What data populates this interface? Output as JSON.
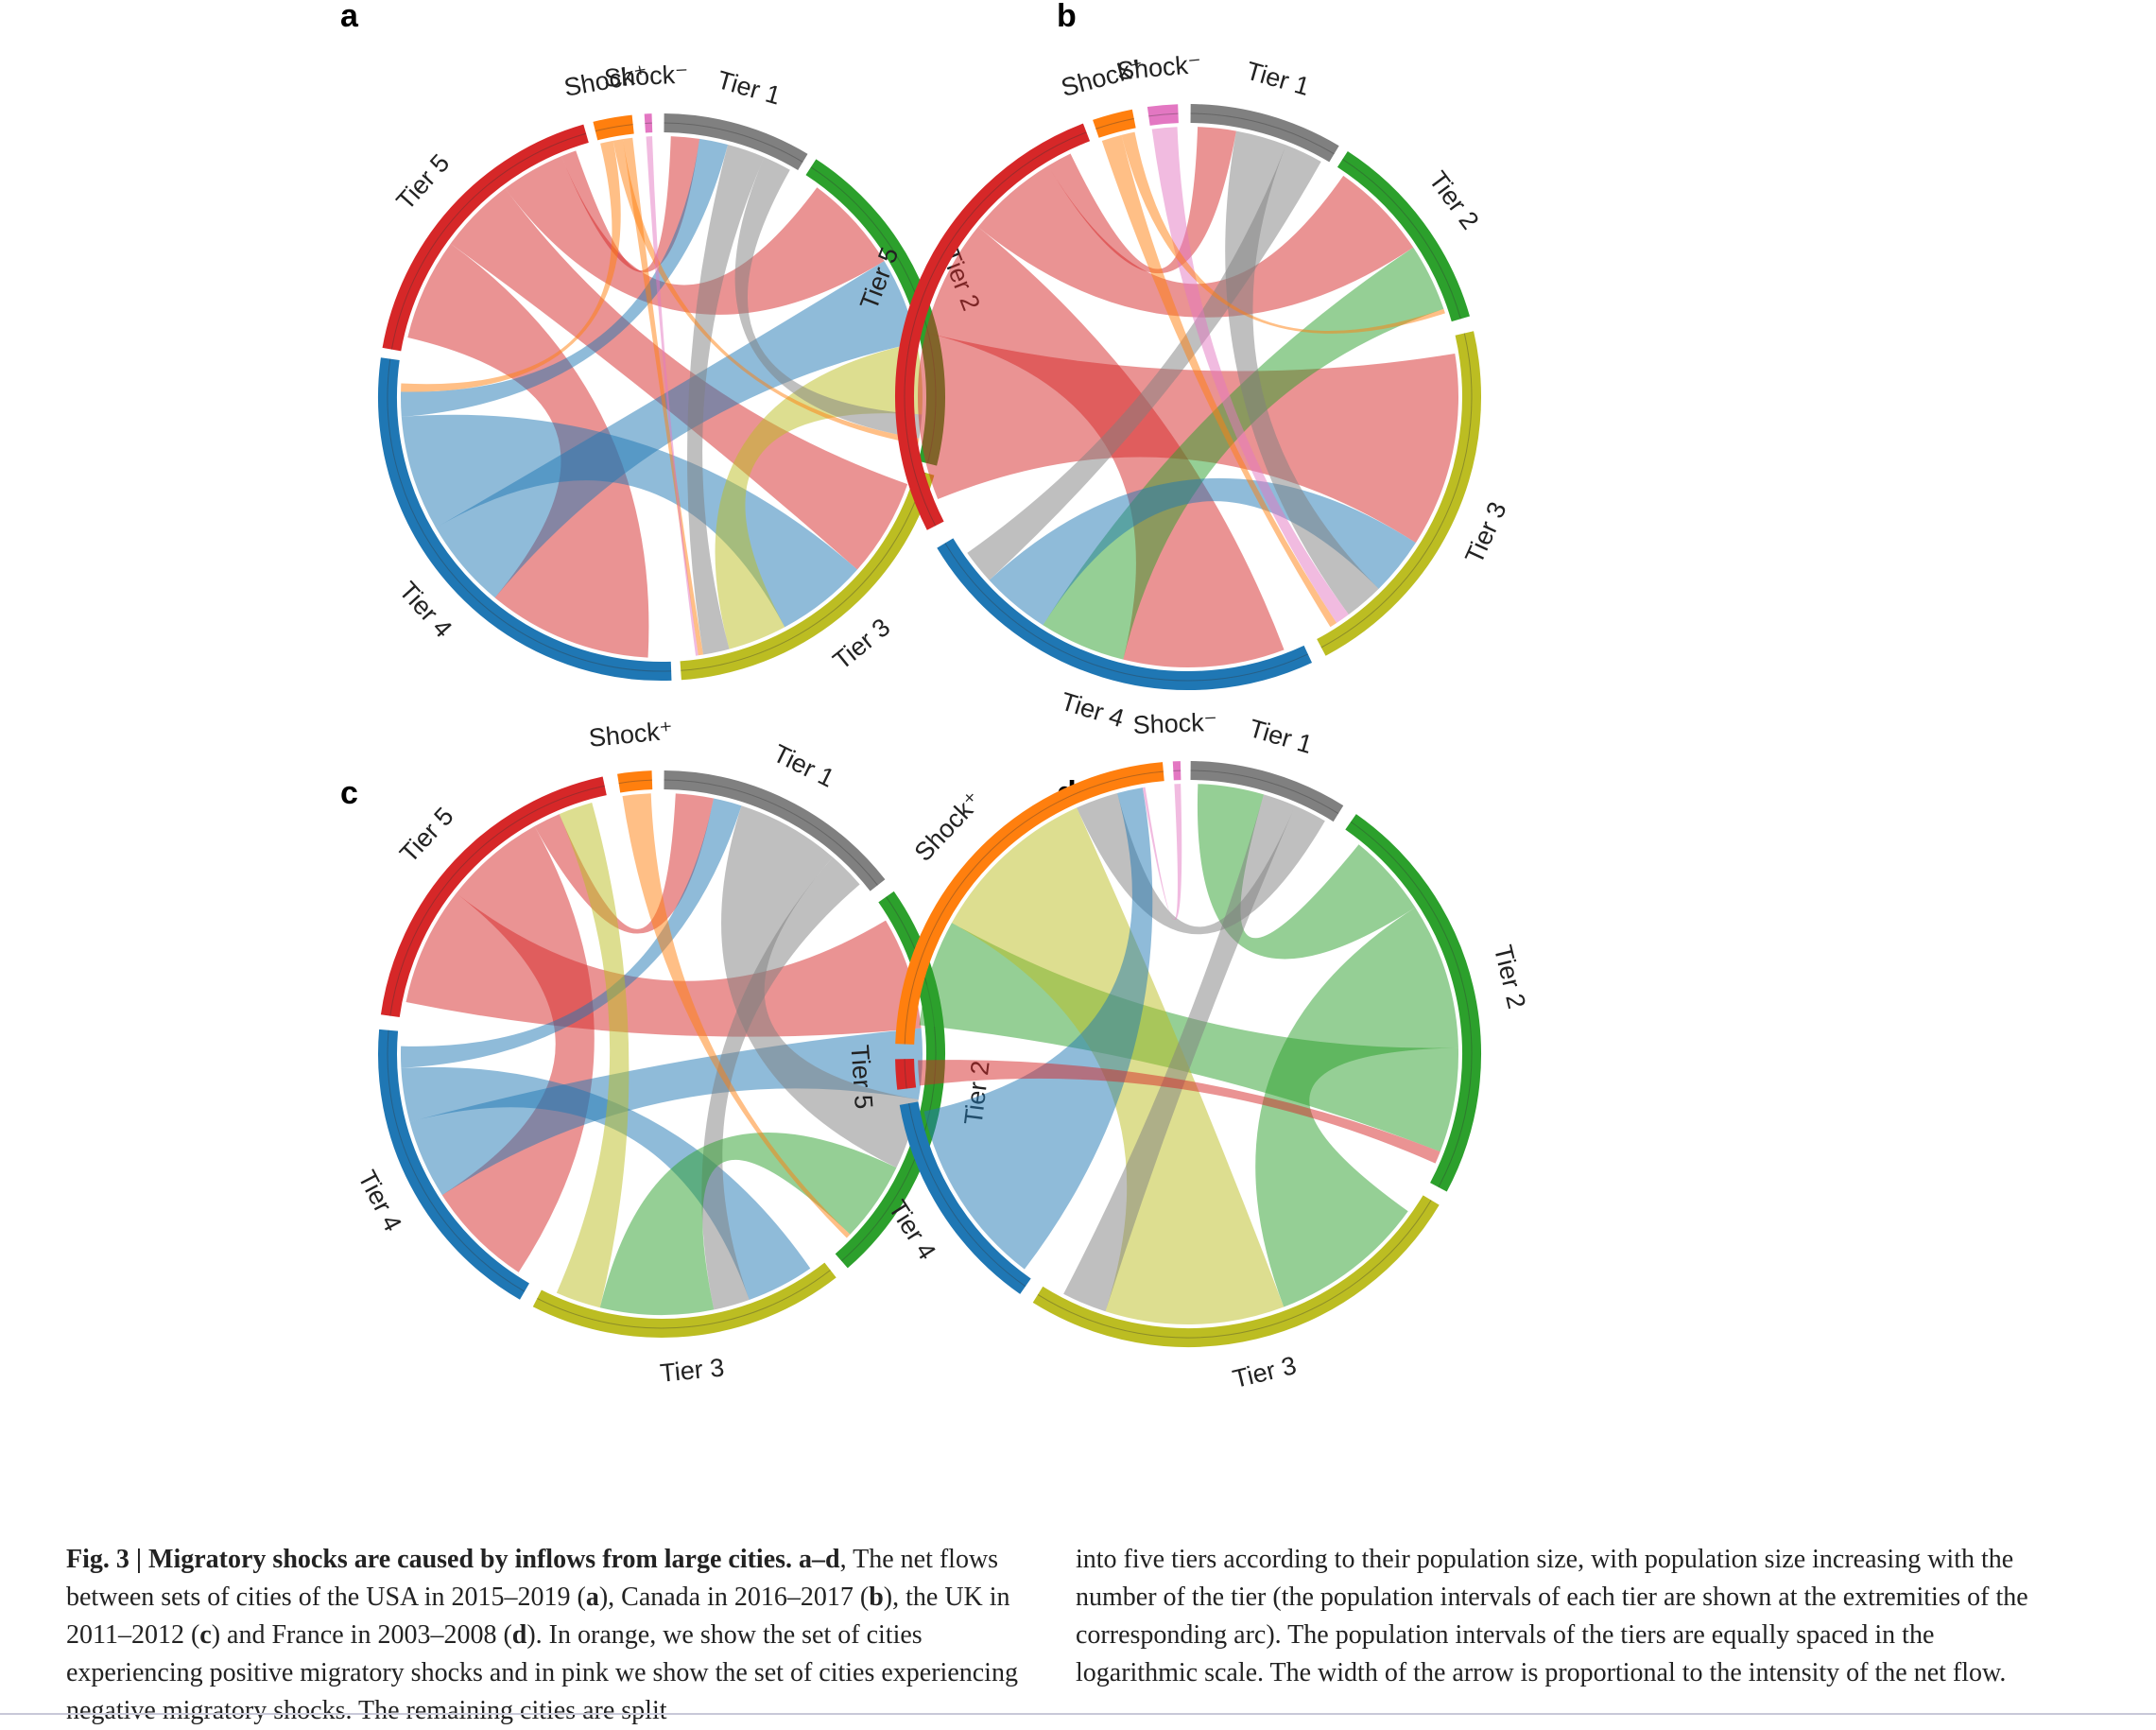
{
  "colors": {
    "Tier 1": "#808080",
    "Tier 2": "#2ca02c",
    "Tier 3": "#bcbd22",
    "Tier 4": "#1f77b4",
    "Tier 5": "#d62728",
    "Shock+": "#ff7f0e",
    "Shock-": "#e377c2"
  },
  "panels": [
    {
      "letter": "a",
      "segments": [
        {
          "label": "Shock⁺",
          "key": "Shock+",
          "start": 346,
          "end": 354
        },
        {
          "label": "Shock⁻",
          "key": "Shock-",
          "start": 356.5,
          "end": 358
        },
        {
          "label": "Tier 1",
          "key": "Tier 1",
          "start": 0.5,
          "end": 31
        },
        {
          "label": "Tier 2",
          "key": "Tier 2",
          "start": 33,
          "end": 104
        },
        {
          "label": "Tier 3",
          "key": "Tier 3",
          "start": 106,
          "end": 176
        },
        {
          "label": "Tier 4",
          "key": "Tier 4",
          "start": 178,
          "end": 278
        },
        {
          "label": "Tier 5",
          "key": "Tier 5",
          "start": 280,
          "end": 344
        }
      ],
      "flows": [
        {
          "from": "Tier 5",
          "to": "Tier 4",
          "w": 40
        },
        {
          "from": "Tier 5",
          "to": "Tier 3",
          "w": 30
        },
        {
          "from": "Tier 5",
          "to": "Tier 2",
          "w": 25
        },
        {
          "from": "Tier 5",
          "to": "Tier 1",
          "w": 6
        },
        {
          "from": "Tier 4",
          "to": "Tier 2",
          "w": 22
        },
        {
          "from": "Tier 4",
          "to": "Tier 3",
          "w": 28
        },
        {
          "from": "Tier 4",
          "to": "Tier 1",
          "w": 6
        },
        {
          "from": "Tier 3",
          "to": "Tier 2",
          "w": 18
        },
        {
          "from": "Tier 1",
          "to": "Tier 3",
          "w": 8
        },
        {
          "from": "Tier 1",
          "to": "Tier 2",
          "w": 6
        },
        {
          "from": "Shock+",
          "to": "Tier 4",
          "w": 2
        },
        {
          "from": "Shock+",
          "to": "Tier 2",
          "w": 1.5
        },
        {
          "from": "Shock+",
          "to": "Tier 3",
          "w": 1.5
        },
        {
          "from": "Shock-",
          "to": "Tier 3",
          "w": 0.8
        }
      ]
    },
    {
      "letter": "b",
      "segments": [
        {
          "label": "Shock⁺",
          "key": "Shock+",
          "start": 341,
          "end": 349
        },
        {
          "label": "Shock⁻",
          "key": "Shock-",
          "start": 352,
          "end": 358
        },
        {
          "label": "Tier 1",
          "key": "Tier 1",
          "start": 0.5,
          "end": 31
        },
        {
          "label": "Tier 2",
          "key": "Tier 2",
          "start": 33,
          "end": 74
        },
        {
          "label": "Tier 3",
          "key": "Tier 3",
          "start": 77,
          "end": 152
        },
        {
          "label": "Tier 4",
          "key": "Tier 4",
          "start": 155,
          "end": 239
        },
        {
          "label": "Tier 5",
          "key": "Tier 5",
          "start": 243,
          "end": 339
        }
      ],
      "flows": [
        {
          "from": "Tier 5",
          "to": "Tier 3",
          "w": 40
        },
        {
          "from": "Tier 5",
          "to": "Tier 4",
          "w": 28
        },
        {
          "from": "Tier 5",
          "to": "Tier 2",
          "w": 22
        },
        {
          "from": "Tier 5",
          "to": "Tier 1",
          "w": 6
        },
        {
          "from": "Tier 2",
          "to": "Tier 4",
          "w": 15
        },
        {
          "from": "Tier 4",
          "to": "Tier 3",
          "w": 12
        },
        {
          "from": "Tier 1",
          "to": "Tier 3",
          "w": 8
        },
        {
          "from": "Tier 1",
          "to": "Tier 4",
          "w": 6
        },
        {
          "from": "Shock-",
          "to": "Tier 3",
          "w": 3
        },
        {
          "from": "Shock+",
          "to": "Tier 3",
          "w": 1.5
        },
        {
          "from": "Shock+",
          "to": "Tier 2",
          "w": 1
        }
      ]
    },
    {
      "letter": "c",
      "segments": [
        {
          "label": "Shock⁺",
          "key": "Shock+",
          "start": 351,
          "end": 358
        },
        {
          "label": "Tier 1",
          "key": "Tier 1",
          "start": 0.5,
          "end": 52
        },
        {
          "label": "Tier 2",
          "key": "Tier 2",
          "start": 55,
          "end": 139
        },
        {
          "label": "Tier 3",
          "key": "Tier 3",
          "start": 142,
          "end": 207
        },
        {
          "label": "Tier 4",
          "key": "Tier 4",
          "start": 210,
          "end": 275
        },
        {
          "label": "Tier 5",
          "key": "Tier 5",
          "start": 278,
          "end": 348
        }
      ],
      "flows": [
        {
          "from": "Tier 5",
          "to": "Tier 2",
          "w": 35
        },
        {
          "from": "Tier 5",
          "to": "Tier 4",
          "w": 30
        },
        {
          "from": "Tier 5",
          "to": "Tier 1",
          "w": 8
        },
        {
          "from": "Tier 4",
          "to": "Tier 2",
          "w": 22
        },
        {
          "from": "Tier 4",
          "to": "Tier 3",
          "w": 15
        },
        {
          "from": "Tier 4",
          "to": "Tier 1",
          "w": 6
        },
        {
          "from": "Tier 1",
          "to": "Tier 2",
          "w": 22
        },
        {
          "from": "Tier 1",
          "to": "Tier 3",
          "w": 8
        },
        {
          "from": "Tier 2",
          "to": "Tier 3",
          "w": 25
        },
        {
          "from": "Tier 3",
          "to": "Tier 5",
          "w": 10
        },
        {
          "from": "Shock+",
          "to": "Tier 2",
          "w": 1.5
        }
      ]
    },
    {
      "letter": "d",
      "segments": [
        {
          "label": "Shock⁻",
          "key": "Shock-",
          "start": 357,
          "end": 358.5
        },
        {
          "label": "Tier 1",
          "key": "Tier 1",
          "start": 0.5,
          "end": 32
        },
        {
          "label": "Tier 2",
          "key": "Tier 2",
          "start": 35,
          "end": 118
        },
        {
          "label": "Tier 3",
          "key": "Tier 3",
          "start": 121,
          "end": 212
        },
        {
          "label": "Tier 4",
          "key": "Tier 4",
          "start": 215,
          "end": 260
        },
        {
          "label": "Tier 5",
          "key": "Tier 5",
          "start": 263,
          "end": 269
        },
        {
          "label": "Shock⁺",
          "key": "Shock+",
          "start": 272,
          "end": 355
        }
      ],
      "flows": [
        {
          "from": "Tier 2",
          "to": "Tier 1",
          "w": 20
        },
        {
          "from": "Tier 2",
          "to": "Tier 3",
          "w": 35
        },
        {
          "from": "Tier 2",
          "to": "Shock+",
          "w": 25
        },
        {
          "from": "Tier 3",
          "to": "Shock+",
          "w": 40
        },
        {
          "from": "Tier 1",
          "to": "Tier 3",
          "w": 10
        },
        {
          "from": "Tier 1",
          "to": "Shock+",
          "w": 10
        },
        {
          "from": "Tier 4",
          "to": "Shock+",
          "w": 6
        },
        {
          "from": "Tier 5",
          "to": "Tier 2",
          "w": 3
        },
        {
          "from": "Shock-",
          "to": "Shock+",
          "w": 0.6
        }
      ]
    }
  ],
  "caption": {
    "fig_label": "Fig. 3 | Migratory shocks are caused by inflows from large cities. a–d",
    "left_text": ", The net flows between sets of cities of the USA in 2015–2019 (",
    "a": "a",
    "t2": "), Canada in 2016–2017 (",
    "b": "b",
    "t3": "), the UK in 2011–2012 (",
    "c": "c",
    "t4": ") and France in 2003–2008 (",
    "d": "d",
    "t5": "). In orange, we show the set of cities experiencing positive migratory shocks and in pink we show the set of cities experiencing negative migratory shocks. The remaining cities are split",
    "right_text": "into five tiers according to their population size, with population size increasing with the number of the tier (the population intervals of each tier are shown at the extremities of the corresponding arc). The population intervals of the tiers are equally spaced in the logarithmic scale. The width of the arrow is proportional to the intensity of the net flow."
  }
}
